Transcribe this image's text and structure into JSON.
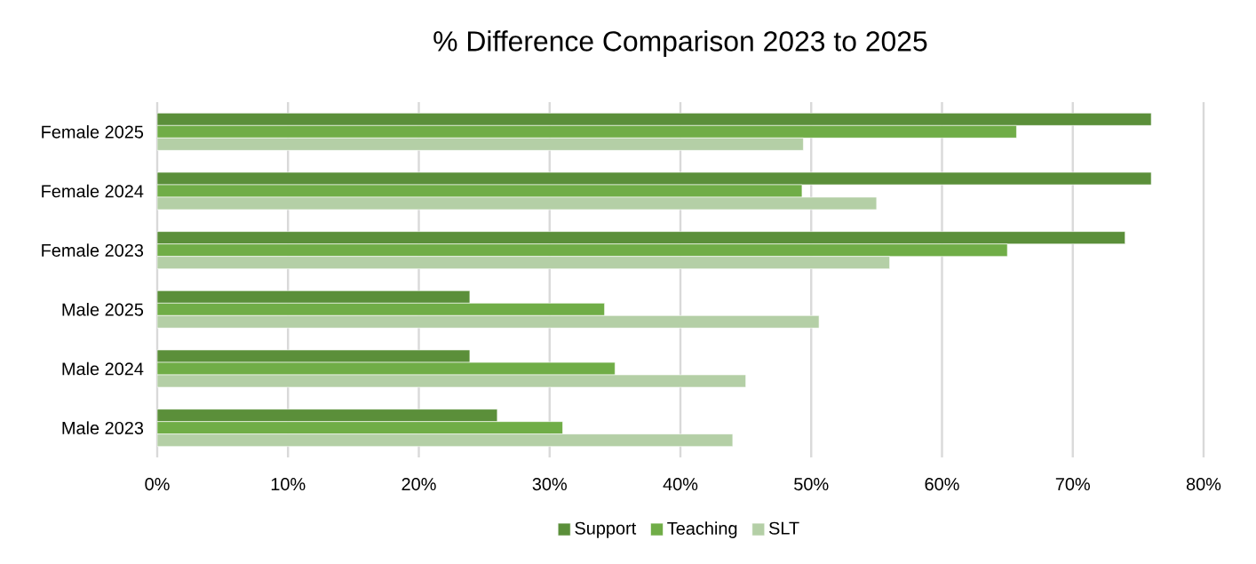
{
  "chart_data": {
    "type": "bar",
    "orientation": "horizontal",
    "title": "% Difference Comparison 2023 to 2025",
    "categories": [
      "Female 2025",
      "Female 2024",
      "Female 2023",
      "Male 2025",
      "Male 2024",
      "Male 2023"
    ],
    "series": [
      {
        "name": "Support",
        "color": "#5b8f3a",
        "values": [
          76,
          76,
          74,
          23.9,
          23.9,
          26
        ]
      },
      {
        "name": "Teaching",
        "color": "#70ad47",
        "values": [
          65.7,
          49.3,
          65,
          34.2,
          35,
          31
        ]
      },
      {
        "name": "SLT",
        "color": "#b4cfa6",
        "values": [
          49.4,
          55,
          56,
          50.6,
          45,
          44
        ]
      }
    ],
    "xlim": [
      0,
      80
    ],
    "xticks": [
      {
        "value": 0,
        "label": "0%"
      },
      {
        "value": 10,
        "label": "10%"
      },
      {
        "value": 20,
        "label": "20%"
      },
      {
        "value": 30,
        "label": "30%"
      },
      {
        "value": 40,
        "label": "40%"
      },
      {
        "value": 50,
        "label": "50%"
      },
      {
        "value": 60,
        "label": "60%"
      },
      {
        "value": 70,
        "label": "70%"
      },
      {
        "value": 80,
        "label": "80%"
      }
    ],
    "grid": "x",
    "legend": "bottom"
  }
}
